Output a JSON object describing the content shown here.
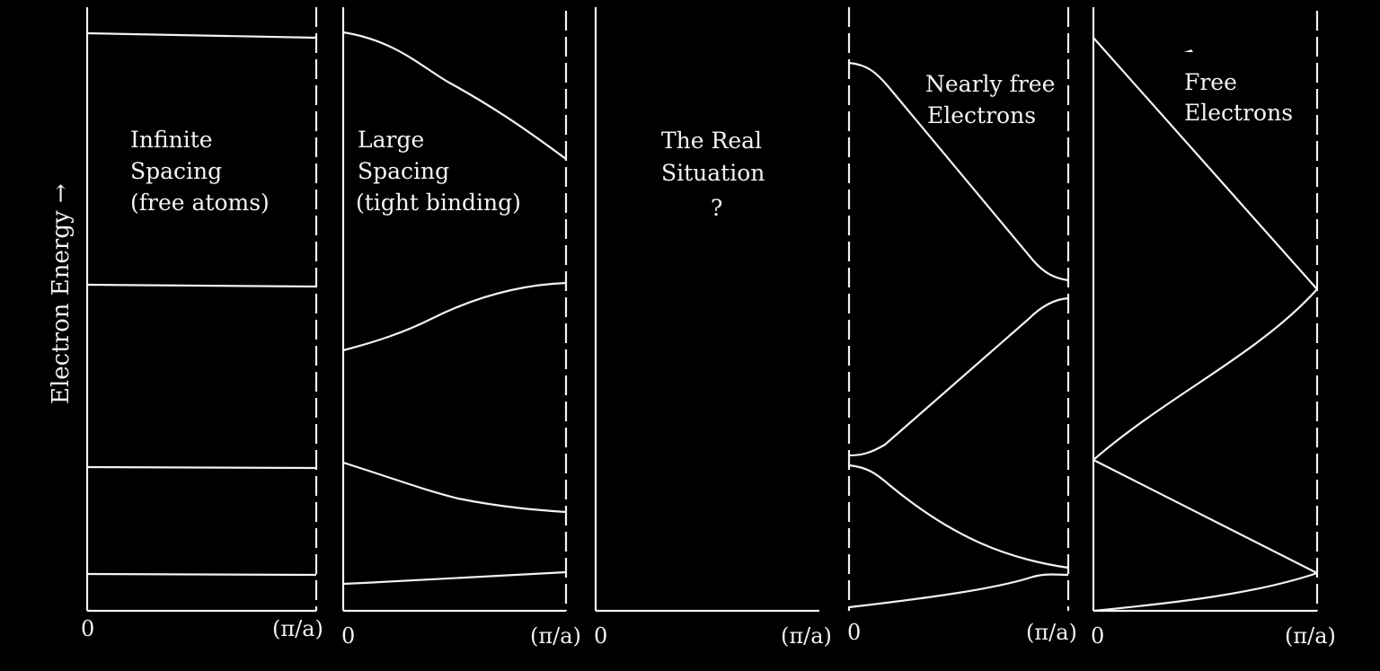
{
  "y_axis_label": "Electron Energy →",
  "panels": [
    {
      "lines": [
        "Infinite",
        "Spacing",
        "(free atoms)"
      ],
      "tick_left": "0",
      "tick_right": "(π/a)"
    },
    {
      "lines": [
        "Large",
        "Spacing",
        "(tight binding)"
      ],
      "tick_left": "0",
      "tick_right": "(π/a)"
    },
    {
      "lines": [
        "The Real",
        "Situation",
        "?"
      ],
      "tick_left": "0",
      "tick_right": "(π/a)"
    },
    {
      "lines": [
        "Nearly free",
        "Electrons"
      ],
      "tick_left": "0",
      "tick_right": "(π/a)"
    },
    {
      "lines": [
        "Free",
        "Electrons"
      ],
      "tick_left": "0",
      "tick_right": "(π/a)"
    }
  ]
}
